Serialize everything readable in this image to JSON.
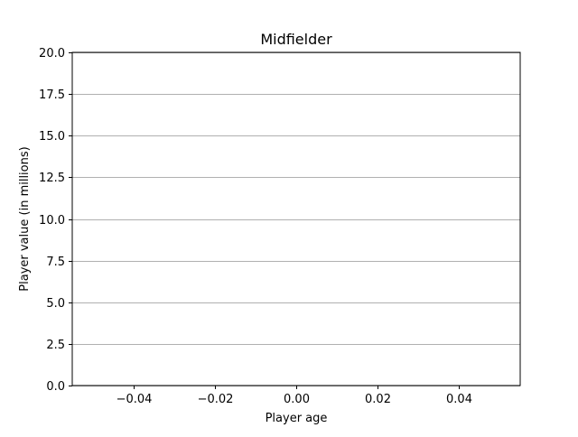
{
  "chart_data": {
    "type": "scatter",
    "title": "Midfielder",
    "xlabel": "Player age",
    "ylabel": "Player value (in millions)",
    "xlim": [
      -0.055,
      0.055
    ],
    "ylim": [
      0,
      20
    ],
    "xticks": [
      -0.04,
      -0.02,
      0.0,
      0.02,
      0.04
    ],
    "xtick_labels": [
      "−0.04",
      "−0.02",
      "0.00",
      "0.02",
      "0.04"
    ],
    "yticks": [
      0,
      2.5,
      5,
      7.5,
      10,
      12.5,
      15,
      17.5,
      20
    ],
    "ytick_labels": [
      "0.0",
      "2.5",
      "5.0",
      "7.5",
      "10.0",
      "12.5",
      "15.0",
      "17.5",
      "20.0"
    ],
    "grid": "y-axis horizontal gridlines",
    "series": [
      {
        "x": [],
        "y": []
      }
    ],
    "colors": {
      "grid": "#b0b0b0",
      "axis": "#000000",
      "background": "#ffffff"
    }
  }
}
